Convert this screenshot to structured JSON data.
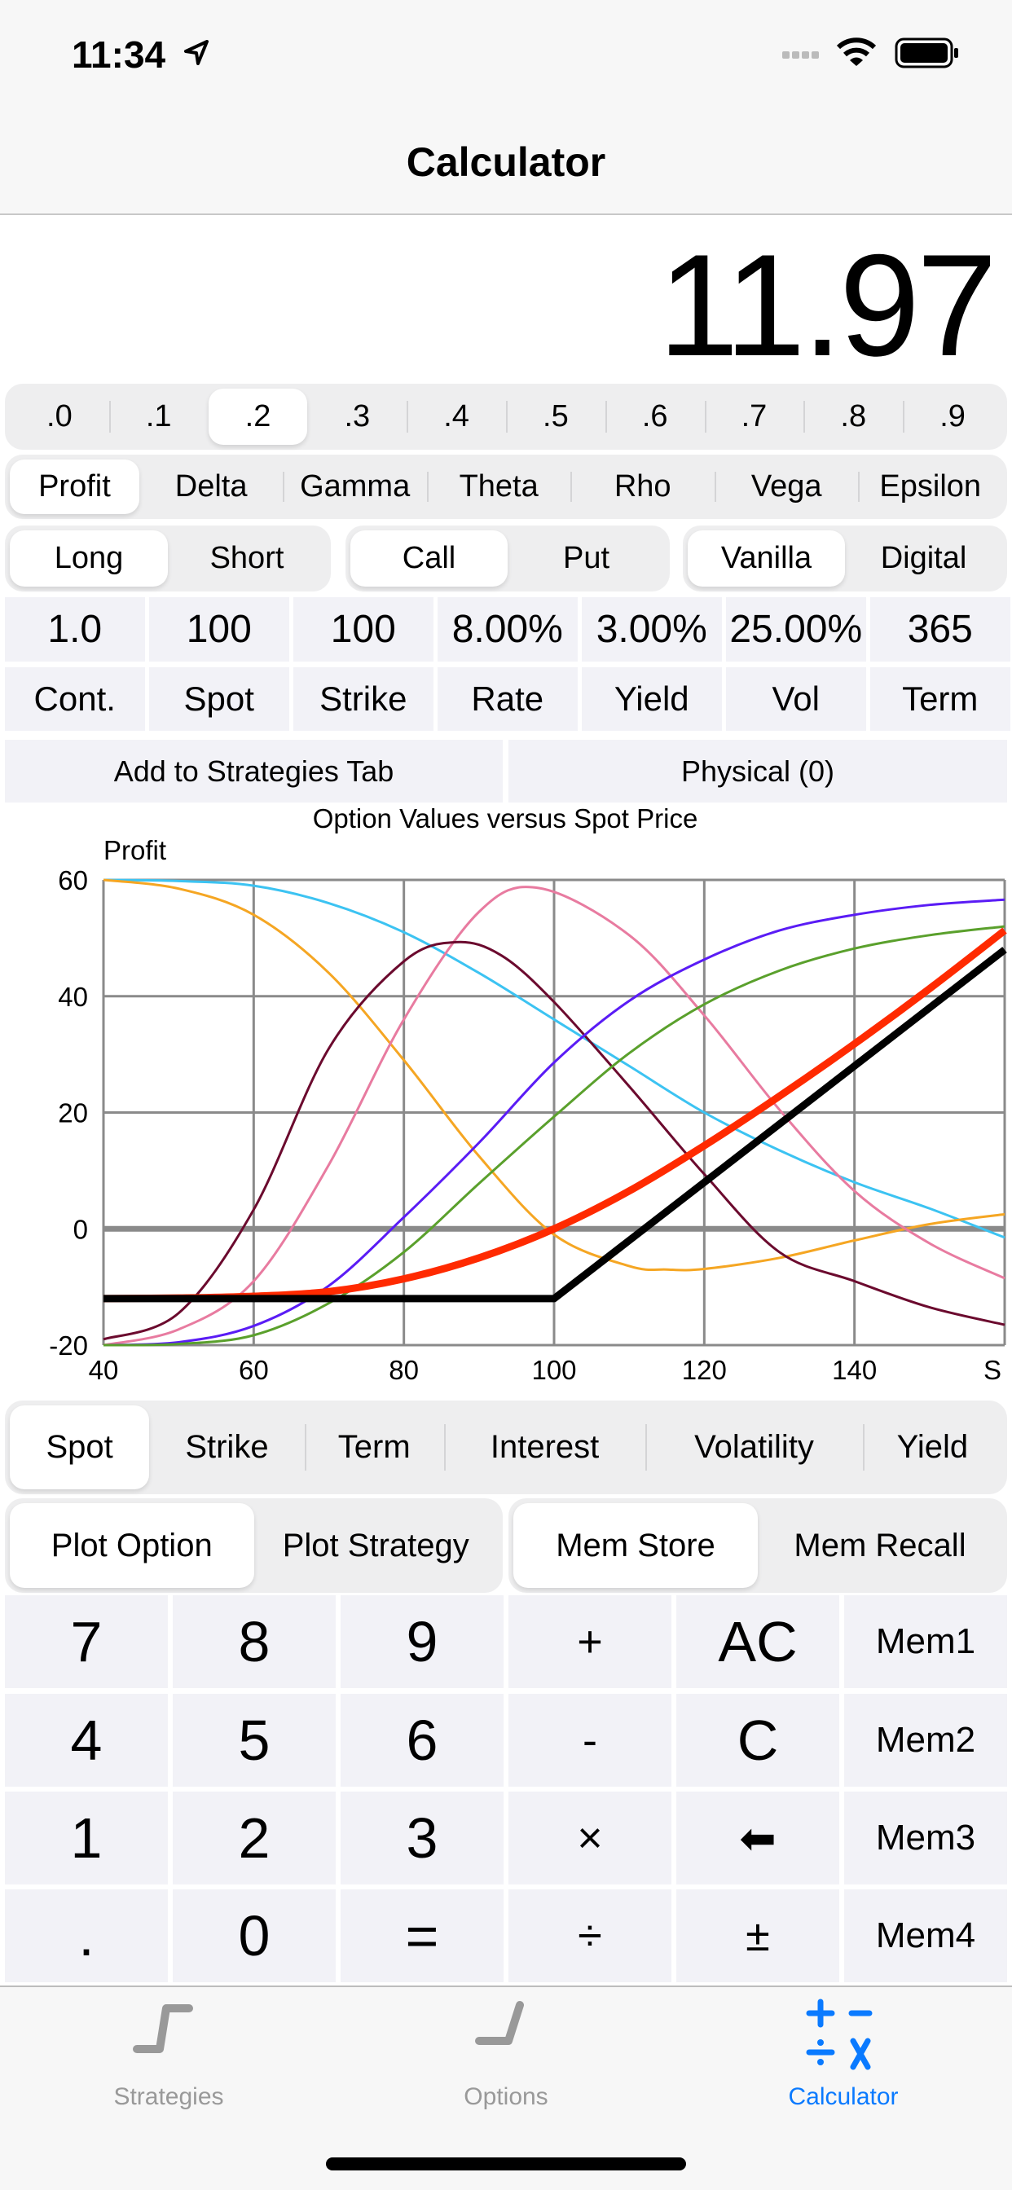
{
  "status": {
    "time": "11:34"
  },
  "nav": {
    "title": "Calculator"
  },
  "display": {
    "value": "11.97"
  },
  "decimals": {
    "items": [
      ".0",
      ".1",
      ".2",
      ".3",
      ".4",
      ".5",
      ".6",
      ".7",
      ".8",
      ".9"
    ],
    "selected": 2
  },
  "measures": {
    "items": [
      "Profit",
      "Delta",
      "Gamma",
      "Theta",
      "Rho",
      "Vega",
      "Epsilon"
    ],
    "selected": 0
  },
  "position": {
    "items": [
      "Long",
      "Short"
    ],
    "selected": 0
  },
  "optype": {
    "items": [
      "Call",
      "Put"
    ],
    "selected": 0
  },
  "style": {
    "items": [
      "Vanilla",
      "Digital"
    ],
    "selected": 0
  },
  "params": {
    "values": [
      "1.0",
      "100",
      "100",
      "8.00%",
      "3.00%",
      "25.00%",
      "365"
    ],
    "labels": [
      "Cont.",
      "Spot",
      "Strike",
      "Rate",
      "Yield",
      "Vol",
      "Term"
    ]
  },
  "actions": {
    "add": "Add to Strategies Tab",
    "physical": "Physical (0)"
  },
  "chart_data": {
    "type": "line",
    "title": "Option Values versus Spot Price",
    "ylabel": "Profit",
    "xlabel": "S",
    "xlim": [
      40,
      160
    ],
    "ylim": [
      -20,
      60
    ],
    "xticks": [
      "40",
      "60",
      "80",
      "100",
      "120",
      "140",
      "S"
    ],
    "xtick_values": [
      40,
      60,
      80,
      100,
      120,
      140,
      160
    ],
    "yticks": [
      "60",
      "40",
      "20",
      "0",
      "-20"
    ],
    "ytick_values": [
      60,
      40,
      20,
      0,
      -20
    ],
    "grid": true,
    "series": [
      {
        "color": "#3cc3f2",
        "width": 3,
        "points": [
          [
            40,
            60
          ],
          [
            50,
            59.8
          ],
          [
            60,
            59
          ],
          [
            70,
            56
          ],
          [
            80,
            51
          ],
          [
            90,
            44
          ],
          [
            100,
            36
          ],
          [
            110,
            28
          ],
          [
            120,
            20
          ],
          [
            130,
            13.5
          ],
          [
            140,
            8
          ],
          [
            150,
            3.5
          ],
          [
            160,
            -1.5
          ]
        ]
      },
      {
        "color": "#f5a623",
        "width": 3,
        "points": [
          [
            40,
            60
          ],
          [
            50,
            58.5
          ],
          [
            60,
            54
          ],
          [
            70,
            44
          ],
          [
            80,
            29
          ],
          [
            90,
            12.5
          ],
          [
            100,
            -1
          ],
          [
            110,
            -6.4
          ],
          [
            115,
            -7
          ],
          [
            120,
            -6.9
          ],
          [
            130,
            -5
          ],
          [
            140,
            -2
          ],
          [
            150,
            0.8
          ],
          [
            160,
            2.5
          ]
        ]
      },
      {
        "color": "#e87ba0",
        "width": 3,
        "points": [
          [
            40,
            -20
          ],
          [
            50,
            -17.3
          ],
          [
            60,
            -9
          ],
          [
            70,
            11
          ],
          [
            80,
            36
          ],
          [
            90,
            54.5
          ],
          [
            98,
            58.6
          ],
          [
            110,
            50.5
          ],
          [
            120,
            36.7
          ],
          [
            130,
            20.5
          ],
          [
            140,
            6.5
          ],
          [
            150,
            -2.5
          ],
          [
            160,
            -8.5
          ]
        ]
      },
      {
        "color": "#6b0a2e",
        "width": 3,
        "points": [
          [
            40,
            -19
          ],
          [
            50,
            -14.5
          ],
          [
            60,
            3.3
          ],
          [
            70,
            31
          ],
          [
            80,
            46
          ],
          [
            87,
            49.3
          ],
          [
            93,
            47
          ],
          [
            100,
            39
          ],
          [
            110,
            24.5
          ],
          [
            120,
            9.4
          ],
          [
            130,
            -4
          ],
          [
            140,
            -9
          ],
          [
            150,
            -13.5
          ],
          [
            160,
            -16.5
          ]
        ]
      },
      {
        "color": "#5a1cf5",
        "width": 3,
        "points": [
          [
            40,
            -20
          ],
          [
            50,
            -19.5
          ],
          [
            60,
            -16.7
          ],
          [
            70,
            -9.8
          ],
          [
            80,
            2
          ],
          [
            90,
            14.8
          ],
          [
            100,
            28.6
          ],
          [
            110,
            39.2
          ],
          [
            120,
            46.3
          ],
          [
            130,
            51.3
          ],
          [
            140,
            54
          ],
          [
            150,
            55.7
          ],
          [
            160,
            56.6
          ]
        ]
      },
      {
        "color": "#5aa02c",
        "width": 3,
        "points": [
          [
            40,
            -20
          ],
          [
            50,
            -19.8
          ],
          [
            60,
            -18.3
          ],
          [
            70,
            -12.8
          ],
          [
            80,
            -4
          ],
          [
            90,
            7.8
          ],
          [
            100,
            19.3
          ],
          [
            110,
            30.2
          ],
          [
            120,
            38.6
          ],
          [
            130,
            44.4
          ],
          [
            140,
            48.2
          ],
          [
            150,
            50.5
          ],
          [
            160,
            52
          ]
        ]
      },
      {
        "color": "#ff2a00",
        "width": 9,
        "points": [
          [
            40,
            -12
          ],
          [
            50,
            -11.9
          ],
          [
            60,
            -11.6
          ],
          [
            70,
            -10.8
          ],
          [
            80,
            -8.6
          ],
          [
            90,
            -5
          ],
          [
            100,
            0
          ],
          [
            110,
            6.5
          ],
          [
            120,
            14.3
          ],
          [
            130,
            22.8
          ],
          [
            140,
            31.8
          ],
          [
            150,
            41.3
          ],
          [
            160,
            51.3
          ]
        ]
      },
      {
        "color": "#000000",
        "width": 9,
        "linear": true,
        "points": [
          [
            40,
            -12
          ],
          [
            100,
            -12
          ],
          [
            160,
            48
          ]
        ]
      }
    ]
  },
  "plotvar": {
    "items": [
      "Spot",
      "Strike",
      "Term",
      "Interest",
      "Volatility",
      "Yield"
    ],
    "selected": 0
  },
  "plotmode": {
    "items": [
      "Plot Option",
      "Plot Strategy"
    ],
    "selected": 0
  },
  "memmode": {
    "items": [
      "Mem Store",
      "Mem Recall"
    ],
    "selected": 0
  },
  "keypad": [
    [
      "7",
      "8",
      "9",
      "+",
      "AC",
      "Mem1"
    ],
    [
      "4",
      "5",
      "6",
      "-",
      "C",
      "Mem2"
    ],
    [
      "1",
      "2",
      "3",
      "×",
      "⬅",
      "Mem3"
    ],
    [
      ".",
      "0",
      "=",
      "÷",
      "±",
      "Mem4"
    ]
  ],
  "tabs": [
    {
      "label": "Strategies"
    },
    {
      "label": "Options"
    },
    {
      "label": "Calculator"
    }
  ],
  "colors": {
    "accent": "#0a7aff",
    "inactive": "#999999"
  }
}
